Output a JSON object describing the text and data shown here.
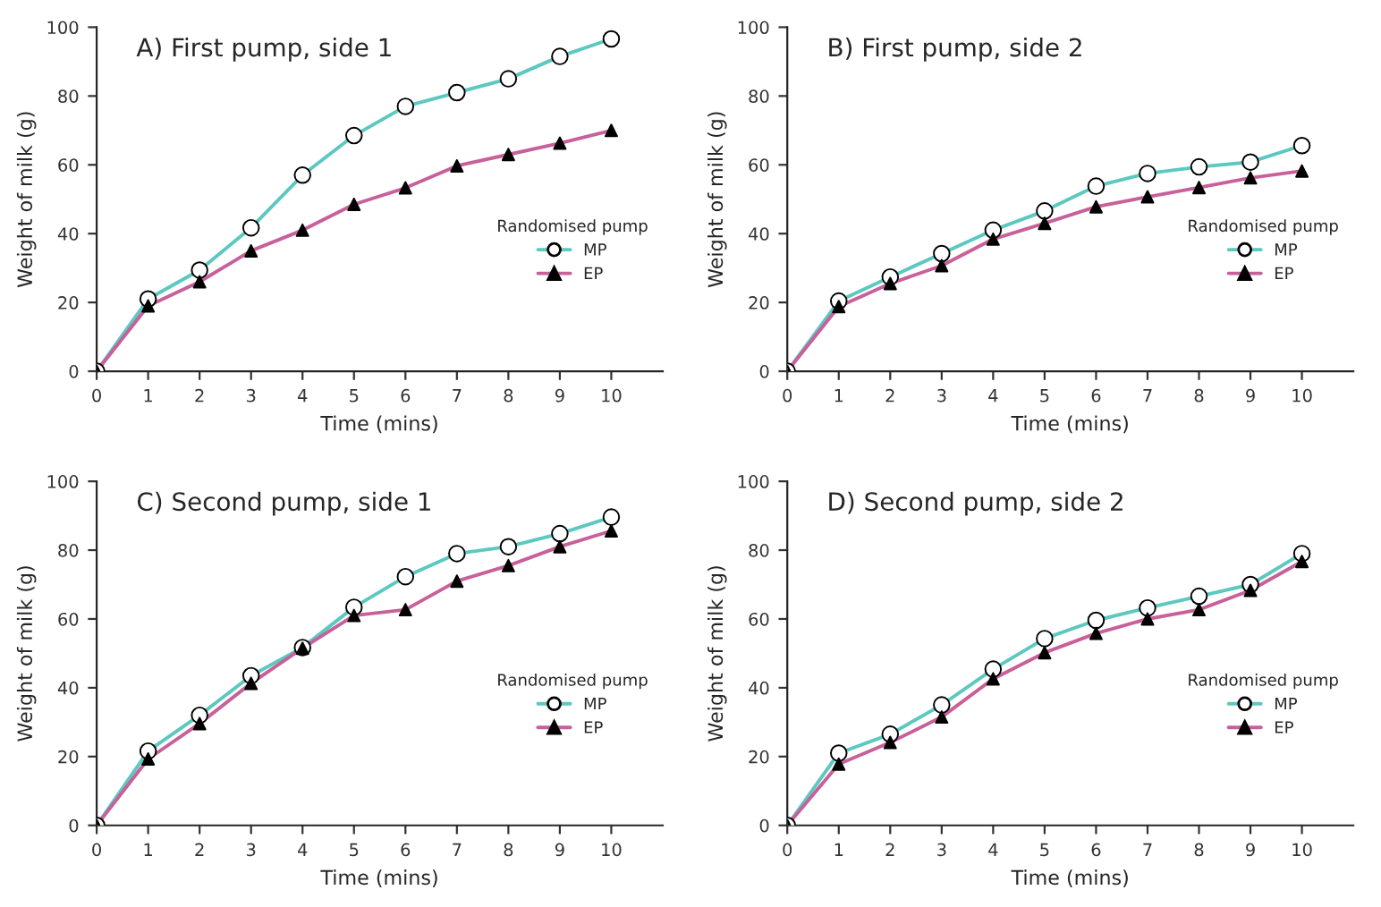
{
  "chart_data": [
    {
      "type": "line",
      "title": "A) First pump, side 1",
      "xlabel": "Time (mins)",
      "ylabel": "Weight of milk (g)",
      "legend_title": "Randomised pump",
      "legend": "center right",
      "grid": false,
      "x": [
        0,
        1,
        2,
        3,
        4,
        5,
        6,
        7,
        8,
        9,
        10
      ],
      "xlim": [
        0,
        11
      ],
      "xticks": [
        0,
        1,
        2,
        3,
        4,
        5,
        6,
        7,
        8,
        9,
        10
      ],
      "ylim": [
        0,
        100
      ],
      "yticks": [
        0,
        20,
        40,
        60,
        80,
        100
      ],
      "series": [
        {
          "name": "MP",
          "color": "#5cc8c0",
          "marker": "circle",
          "values": [
            0,
            21,
            29.4,
            41.7,
            57,
            68.5,
            77,
            81,
            85,
            91.5,
            96.6
          ]
        },
        {
          "name": "EP",
          "color": "#c8609a",
          "marker": "triangle",
          "values": [
            0,
            19,
            26,
            35,
            41,
            48.5,
            53.3,
            59.7,
            63,
            66.3,
            70
          ]
        }
      ]
    },
    {
      "type": "line",
      "title": "B) First pump, side 2",
      "xlabel": "Time (mins)",
      "ylabel": "Weight of milk (g)",
      "legend_title": "Randomised pump",
      "legend": "center right",
      "grid": false,
      "x": [
        0,
        1,
        2,
        3,
        4,
        5,
        6,
        7,
        8,
        9,
        10
      ],
      "xlim": [
        0,
        11
      ],
      "xticks": [
        0,
        1,
        2,
        3,
        4,
        5,
        6,
        7,
        8,
        9,
        10
      ],
      "ylim": [
        0,
        100
      ],
      "yticks": [
        0,
        20,
        40,
        60,
        80,
        100
      ],
      "series": [
        {
          "name": "MP",
          "color": "#5cc8c0",
          "marker": "circle",
          "values": [
            0,
            20.4,
            27.4,
            34.2,
            41,
            46.6,
            53.8,
            57.5,
            59.4,
            60.8,
            65.6
          ]
        },
        {
          "name": "EP",
          "color": "#c8609a",
          "marker": "triangle",
          "values": [
            0,
            18.8,
            25.5,
            30.7,
            38.4,
            43,
            47.8,
            50.7,
            53.4,
            56.2,
            58.2
          ]
        }
      ]
    },
    {
      "type": "line",
      "title": "C) Second pump, side 1",
      "xlabel": "Time (mins)",
      "ylabel": "Weight of milk (g)",
      "legend_title": "Randomised pump",
      "legend": "center right",
      "grid": false,
      "x": [
        0,
        1,
        2,
        3,
        4,
        5,
        6,
        7,
        8,
        9,
        10
      ],
      "xlim": [
        0,
        11
      ],
      "xticks": [
        0,
        1,
        2,
        3,
        4,
        5,
        6,
        7,
        8,
        9,
        10
      ],
      "ylim": [
        0,
        100
      ],
      "yticks": [
        0,
        20,
        40,
        60,
        80,
        100
      ],
      "series": [
        {
          "name": "MP",
          "color": "#5cc8c0",
          "marker": "circle",
          "values": [
            0,
            21.6,
            32,
            43.5,
            51.7,
            63.4,
            72.3,
            79,
            81,
            84.8,
            89.6
          ]
        },
        {
          "name": "EP",
          "color": "#c8609a",
          "marker": "triangle",
          "values": [
            0,
            19.3,
            29.6,
            41.3,
            51.5,
            61,
            62.7,
            71,
            75.5,
            81,
            85.6
          ]
        }
      ]
    },
    {
      "type": "line",
      "title": "D) Second pump, side 2",
      "xlabel": "Time (mins)",
      "ylabel": "Weight of milk (g)",
      "legend_title": "Randomised pump",
      "legend": "center right",
      "grid": false,
      "x": [
        0,
        1,
        2,
        3,
        4,
        5,
        6,
        7,
        8,
        9,
        10
      ],
      "xlim": [
        0,
        11
      ],
      "xticks": [
        0,
        1,
        2,
        3,
        4,
        5,
        6,
        7,
        8,
        9,
        10
      ],
      "ylim": [
        0,
        100
      ],
      "yticks": [
        0,
        20,
        40,
        60,
        80,
        100
      ],
      "series": [
        {
          "name": "MP",
          "color": "#5cc8c0",
          "marker": "circle",
          "values": [
            0,
            21,
            26.5,
            35,
            45.4,
            54.3,
            59.6,
            63.2,
            66.6,
            70,
            79
          ]
        },
        {
          "name": "EP",
          "color": "#c8609a",
          "marker": "triangle",
          "values": [
            0,
            17.8,
            24.1,
            31.5,
            42.6,
            50.2,
            55.8,
            60,
            62.7,
            68.3,
            76.7
          ]
        }
      ]
    }
  ]
}
